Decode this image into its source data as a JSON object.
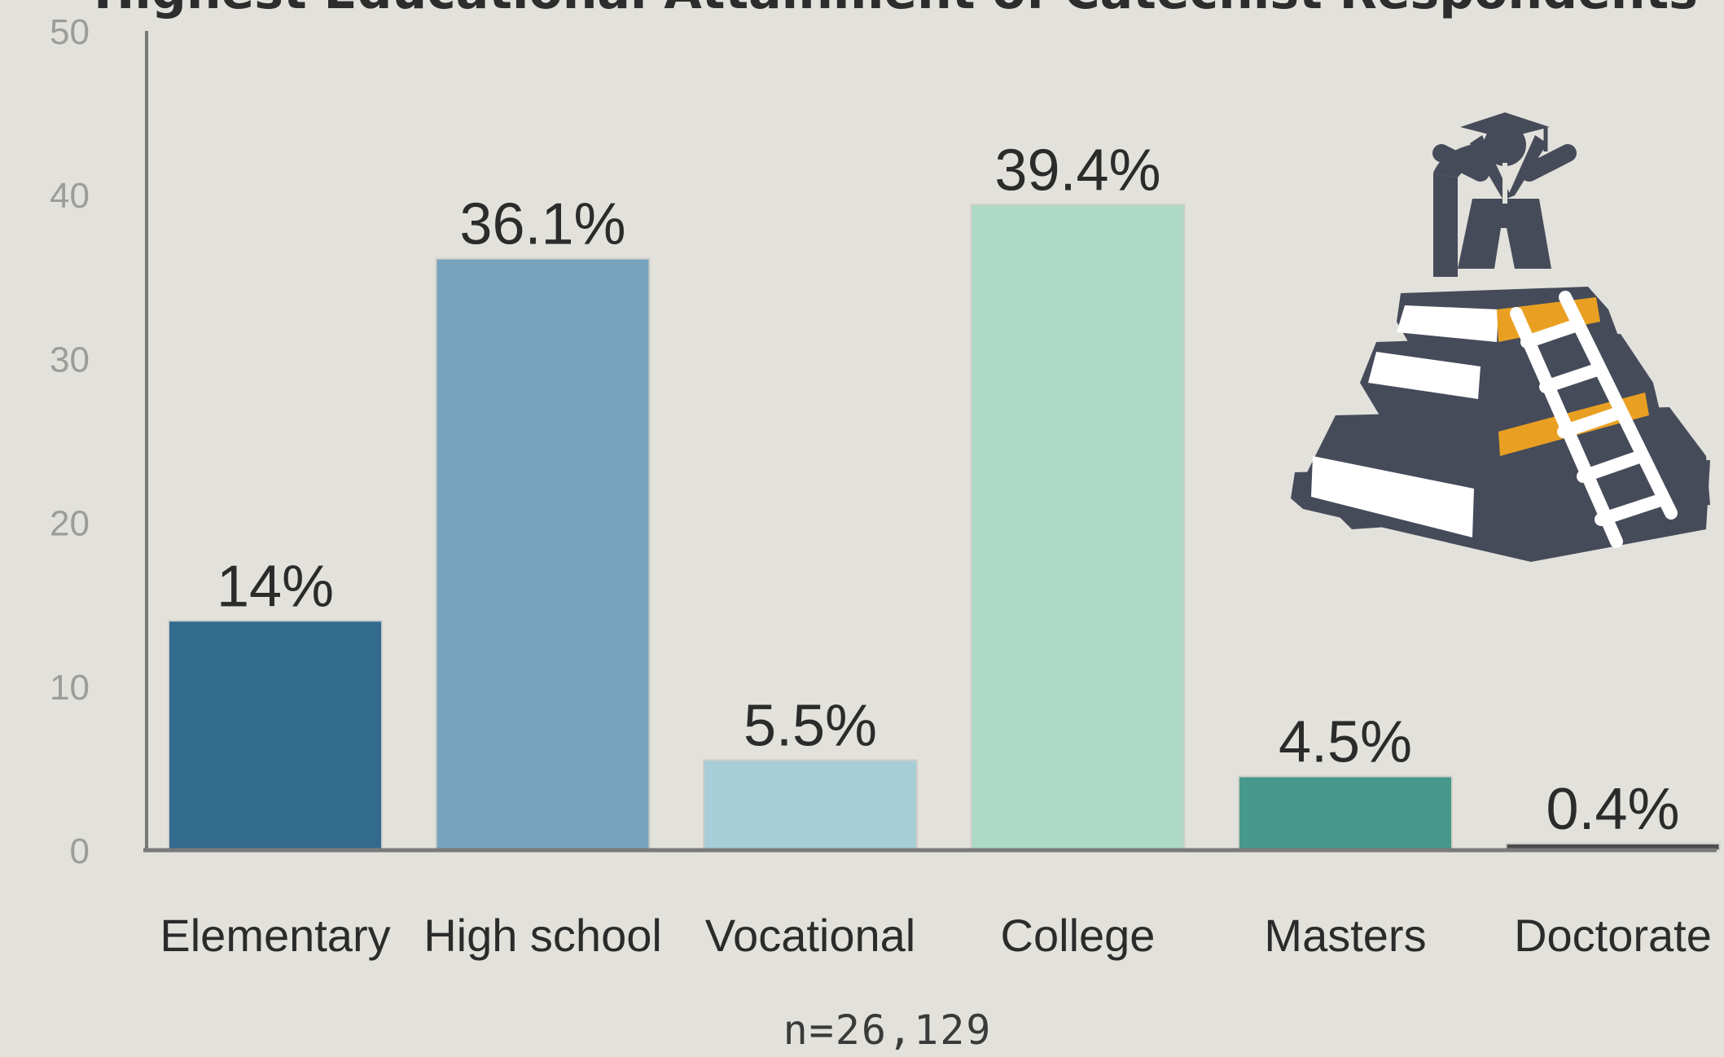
{
  "chart_data": {
    "type": "bar",
    "title": "Highest Educational Attainment of Catechist Respondents",
    "categories": [
      "Elementary",
      "High school",
      "Vocational",
      "College",
      "Masters",
      "Doctorate"
    ],
    "values": [
      14,
      36.1,
      5.5,
      39.4,
      4.5,
      0.4
    ],
    "value_labels": [
      "14%",
      "36.1%",
      "5.5%",
      "39.4%",
      "4.5%",
      "0.4%"
    ],
    "colors": [
      "#336b8f",
      "#77a3bf",
      "#a7cdd8",
      "#add9c6",
      "#46998a",
      "#4c4c4c"
    ],
    "yticks": [
      "0",
      "10",
      "20",
      "30",
      "40",
      "50"
    ],
    "ylim": [
      0,
      50
    ],
    "xlabel": "",
    "ylabel": "",
    "grid": false,
    "note": "n=26,129"
  },
  "illustration": {
    "icon": "graduate-on-books-ladder-icon",
    "colors": {
      "dark": "#464b5a",
      "accent": "#e9a022",
      "page": "#ffffff"
    }
  }
}
